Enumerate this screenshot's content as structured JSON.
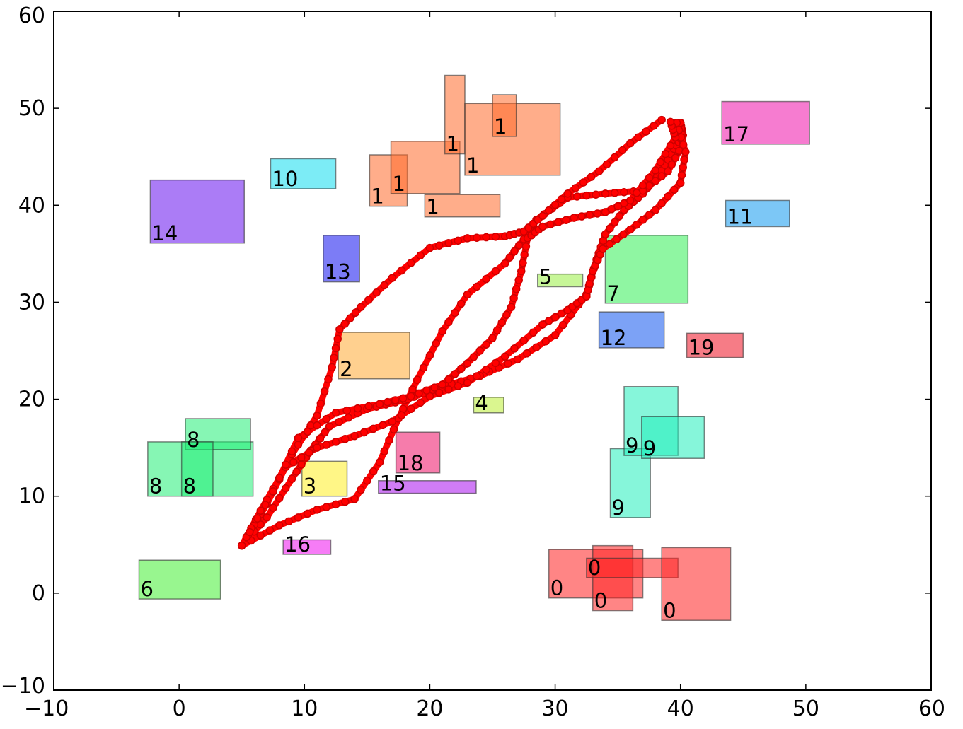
{
  "chart_data": {
    "type": "scatter",
    "title": "",
    "xlabel": "",
    "ylabel": "",
    "xlim": [
      -10,
      60
    ],
    "ylim": [
      -10,
      60
    ],
    "x_ticks": [
      -10,
      0,
      10,
      20,
      30,
      40,
      50,
      60
    ],
    "y_ticks": [
      -10,
      0,
      10,
      20,
      30,
      40,
      50,
      60
    ],
    "x_tick_labels": [
      "−10",
      "0",
      "10",
      "20",
      "30",
      "40",
      "50",
      "60"
    ],
    "y_tick_labels": [
      "−10",
      "0",
      "10",
      "20",
      "30",
      "40",
      "50",
      "60"
    ],
    "grid": false,
    "path_color": "#ff0000",
    "path_marker_color": "#cc0000",
    "rectangles": [
      {
        "label": "0",
        "x0": 29.5,
        "y0": -0.5,
        "x1": 37.0,
        "y1": 4.5,
        "color": "#ff2020"
      },
      {
        "label": "0",
        "x0": 33.0,
        "y0": -1.8,
        "x1": 36.2,
        "y1": 4.9,
        "color": "#ff2020"
      },
      {
        "label": "0",
        "x0": 32.5,
        "y0": 1.6,
        "x1": 39.8,
        "y1": 3.6,
        "color": "#ff2020"
      },
      {
        "label": "0",
        "x0": 38.5,
        "y0": -2.8,
        "x1": 44.0,
        "y1": 4.7,
        "color": "#ff2020"
      },
      {
        "label": "1",
        "x0": 15.2,
        "y0": 39.9,
        "x1": 18.2,
        "y1": 45.2,
        "color": "#ff6a2a"
      },
      {
        "label": "1",
        "x0": 16.9,
        "y0": 41.2,
        "x1": 22.4,
        "y1": 46.6,
        "color": "#ff6a2a"
      },
      {
        "label": "1",
        "x0": 19.6,
        "y0": 38.8,
        "x1": 25.6,
        "y1": 41.1,
        "color": "#ff6a2a"
      },
      {
        "label": "1",
        "x0": 21.2,
        "y0": 45.3,
        "x1": 22.8,
        "y1": 53.4,
        "color": "#ff6a2a"
      },
      {
        "label": "1",
        "x0": 22.8,
        "y0": 43.1,
        "x1": 30.4,
        "y1": 50.5,
        "color": "#ff6a2a"
      },
      {
        "label": "1",
        "x0": 25.0,
        "y0": 47.1,
        "x1": 26.9,
        "y1": 51.4,
        "color": "#ff6a2a"
      },
      {
        "label": "2",
        "x0": 12.7,
        "y0": 22.1,
        "x1": 18.4,
        "y1": 26.9,
        "color": "#ffaa33"
      },
      {
        "label": "3",
        "x0": 9.8,
        "y0": 10.0,
        "x1": 13.4,
        "y1": 13.6,
        "color": "#ffee22"
      },
      {
        "label": "4",
        "x0": 23.5,
        "y0": 18.6,
        "x1": 25.9,
        "y1": 20.2,
        "color": "#bbee33"
      },
      {
        "label": "5",
        "x0": 28.6,
        "y0": 31.6,
        "x1": 32.2,
        "y1": 32.9,
        "color": "#99ee44"
      },
      {
        "label": "6",
        "x0": -3.2,
        "y0": -0.6,
        "x1": 3.3,
        "y1": 3.4,
        "color": "#44ee33"
      },
      {
        "label": "7",
        "x0": 34.0,
        "y0": 29.9,
        "x1": 40.6,
        "y1": 36.9,
        "color": "#33ee55"
      },
      {
        "label": "8",
        "x0": -2.5,
        "y0": 10.0,
        "x1": 5.9,
        "y1": 15.6,
        "color": "#22ee77"
      },
      {
        "label": "8",
        "x0": 0.5,
        "y0": 14.8,
        "x1": 5.7,
        "y1": 18.0,
        "color": "#22ee77"
      },
      {
        "label": "8",
        "x0": 0.2,
        "y0": 10.0,
        "x1": 2.7,
        "y1": 15.6,
        "color": "#22ee77"
      },
      {
        "label": "9",
        "x0": 34.4,
        "y0": 7.8,
        "x1": 37.6,
        "y1": 14.9,
        "color": "#22eebb"
      },
      {
        "label": "9",
        "x0": 35.5,
        "y0": 14.2,
        "x1": 39.8,
        "y1": 21.3,
        "color": "#22eebb"
      },
      {
        "label": "9",
        "x0": 36.9,
        "y0": 13.9,
        "x1": 41.9,
        "y1": 18.2,
        "color": "#22eebb"
      },
      {
        "label": "10",
        "x0": 7.3,
        "y0": 41.7,
        "x1": 12.5,
        "y1": 44.8,
        "color": "#11ddee"
      },
      {
        "label": "11",
        "x0": 43.6,
        "y0": 37.8,
        "x1": 48.7,
        "y1": 40.5,
        "color": "#1199ee"
      },
      {
        "label": "12",
        "x0": 33.5,
        "y0": 25.3,
        "x1": 38.7,
        "y1": 29.0,
        "color": "#1155ee"
      },
      {
        "label": "13",
        "x0": 11.5,
        "y0": 32.1,
        "x1": 14.4,
        "y1": 36.9,
        "color": "#1111ee"
      },
      {
        "label": "14",
        "x0": -2.3,
        "y0": 36.1,
        "x1": 5.2,
        "y1": 42.6,
        "color": "#6611ee"
      },
      {
        "label": "15",
        "x0": 15.9,
        "y0": 10.3,
        "x1": 23.7,
        "y1": 11.6,
        "color": "#aa11ee"
      },
      {
        "label": "16",
        "x0": 8.3,
        "y0": 4.0,
        "x1": 12.1,
        "y1": 5.5,
        "color": "#ee11ee"
      },
      {
        "label": "17",
        "x0": 43.3,
        "y0": 46.3,
        "x1": 50.3,
        "y1": 50.7,
        "color": "#ee11aa"
      },
      {
        "label": "18",
        "x0": 17.3,
        "y0": 12.4,
        "x1": 20.8,
        "y1": 16.6,
        "color": "#ee1166"
      },
      {
        "label": "19",
        "x0": 40.5,
        "y0": 24.3,
        "x1": 45.0,
        "y1": 26.8,
        "color": "#ee1122"
      }
    ],
    "paths": [
      [
        [
          5.0,
          4.9
        ],
        [
          7.0,
          7.8
        ],
        [
          9.0,
          11.8
        ],
        [
          10.5,
          14.7
        ],
        [
          12.0,
          17.2
        ],
        [
          15.0,
          19.0
        ],
        [
          18.0,
          19.9
        ],
        [
          21.0,
          21.3
        ],
        [
          24.0,
          22.4
        ],
        [
          27.0,
          24.1
        ],
        [
          30.0,
          26.6
        ],
        [
          32.5,
          30.8
        ],
        [
          33.3,
          34.4
        ],
        [
          34.0,
          37.0
        ],
        [
          35.5,
          39.5
        ],
        [
          37.0,
          41.2
        ],
        [
          38.5,
          43.6
        ],
        [
          39.5,
          45.8
        ],
        [
          40.2,
          47.2
        ],
        [
          40.0,
          48.5
        ]
      ],
      [
        [
          5.0,
          4.9
        ],
        [
          8.0,
          7.0
        ],
        [
          11.0,
          8.6
        ],
        [
          14.0,
          9.7
        ],
        [
          16.0,
          13.5
        ],
        [
          17.5,
          18.0
        ],
        [
          19.0,
          22.0
        ],
        [
          21.0,
          27.0
        ],
        [
          23.0,
          30.8
        ],
        [
          26.0,
          34.0
        ],
        [
          27.5,
          36.5
        ],
        [
          28.5,
          38.5
        ],
        [
          31.0,
          40.8
        ],
        [
          34.0,
          41.2
        ],
        [
          37.0,
          41.5
        ],
        [
          39.0,
          43.5
        ],
        [
          40.2,
          46.3
        ],
        [
          40.0,
          48.5
        ]
      ],
      [
        [
          5.0,
          4.9
        ],
        [
          7.0,
          9.2
        ],
        [
          9.0,
          14.3
        ],
        [
          11.0,
          18.3
        ],
        [
          12.2,
          23.3
        ],
        [
          12.8,
          27.2
        ],
        [
          14.5,
          29.5
        ],
        [
          17.0,
          32.5
        ],
        [
          20.0,
          35.6
        ],
        [
          23.0,
          36.6
        ],
        [
          26.0,
          36.8
        ],
        [
          27.5,
          37.3
        ],
        [
          29.0,
          38.9
        ],
        [
          31.0,
          41.2
        ],
        [
          33.5,
          43.5
        ],
        [
          36.0,
          46.4
        ],
        [
          38.5,
          48.8
        ]
      ],
      [
        [
          5.0,
          4.9
        ],
        [
          6.5,
          8.5
        ],
        [
          8.5,
          13.0
        ],
        [
          11.0,
          15.0
        ],
        [
          14.0,
          16.2
        ],
        [
          17.0,
          17.7
        ],
        [
          20.0,
          20.3
        ],
        [
          23.0,
          21.7
        ],
        [
          26.0,
          24.4
        ],
        [
          29.0,
          27.7
        ],
        [
          31.0,
          29.2
        ],
        [
          32.5,
          30.6
        ],
        [
          33.0,
          33.2
        ],
        [
          33.8,
          35.5
        ],
        [
          36.0,
          37.5
        ],
        [
          38.0,
          39.5
        ],
        [
          40.0,
          42.3
        ],
        [
          40.4,
          45.5
        ],
        [
          39.7,
          48.5
        ]
      ],
      [
        [
          5.0,
          4.9
        ],
        [
          7.5,
          10.5
        ],
        [
          9.5,
          16.0
        ],
        [
          12.5,
          18.6
        ],
        [
          16.0,
          19.5
        ],
        [
          18.5,
          20.3
        ],
        [
          21.0,
          21.5
        ],
        [
          23.0,
          23.7
        ],
        [
          25.0,
          26.3
        ],
        [
          26.5,
          29.5
        ],
        [
          27.3,
          33.2
        ],
        [
          27.8,
          36.6
        ],
        [
          29.0,
          37.8
        ],
        [
          31.5,
          38.7
        ],
        [
          34.0,
          39.3
        ],
        [
          36.0,
          40.5
        ],
        [
          38.0,
          43.6
        ],
        [
          39.6,
          47.0
        ],
        [
          39.2,
          48.6
        ]
      ]
    ]
  }
}
